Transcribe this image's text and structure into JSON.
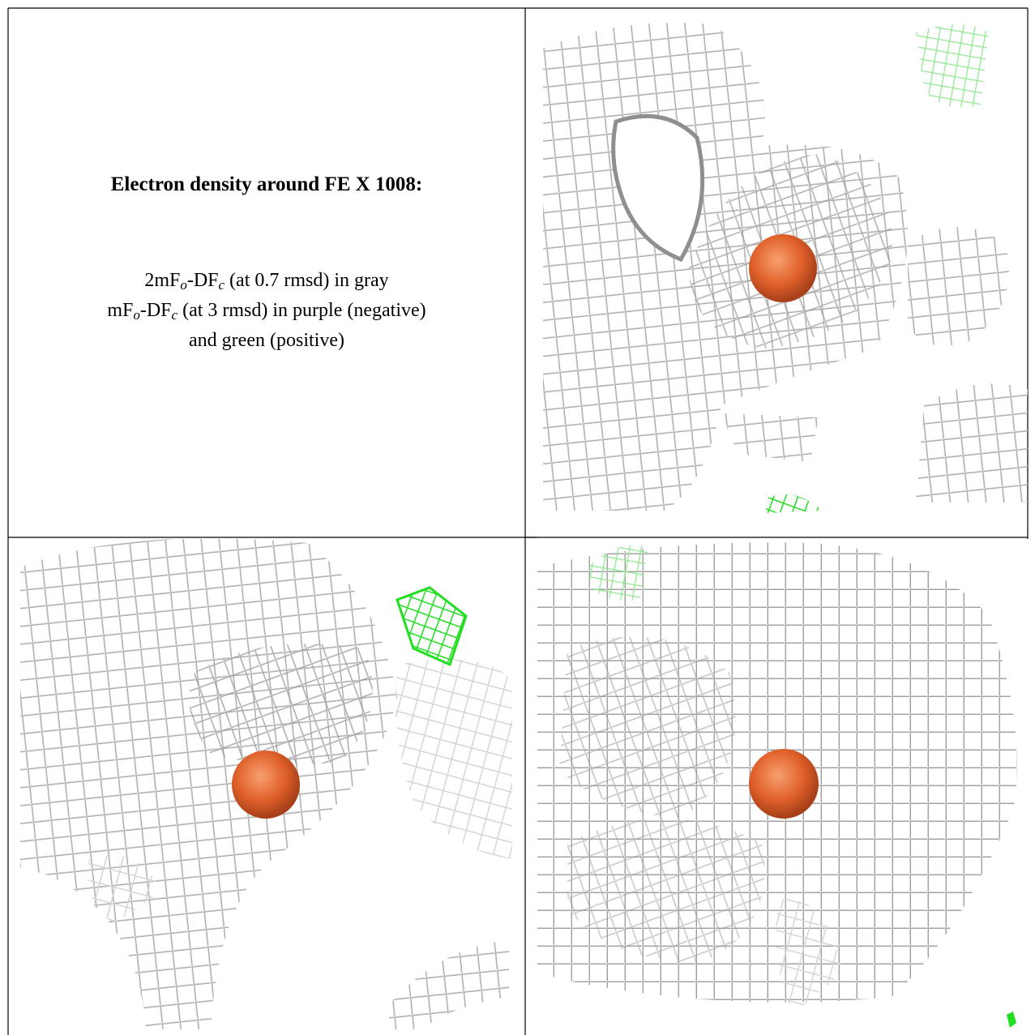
{
  "panel_text": {
    "title": "Electron density around FE X 1008:",
    "lines": [
      [
        {
          "text": "2mF"
        },
        {
          "text": "o",
          "sub": true
        },
        {
          "text": "-DF"
        },
        {
          "text": "c",
          "sub": true
        },
        {
          "text": " (at 0.7 rmsd) in gray"
        }
      ],
      [
        {
          "text": "mF"
        },
        {
          "text": "o",
          "sub": true
        },
        {
          "text": "-DF"
        },
        {
          "text": "c",
          "sub": true
        },
        {
          "text": " (at 3 rmsd) in purple (negative)"
        }
      ],
      [
        {
          "text": "and green (positive)"
        }
      ]
    ]
  }
}
